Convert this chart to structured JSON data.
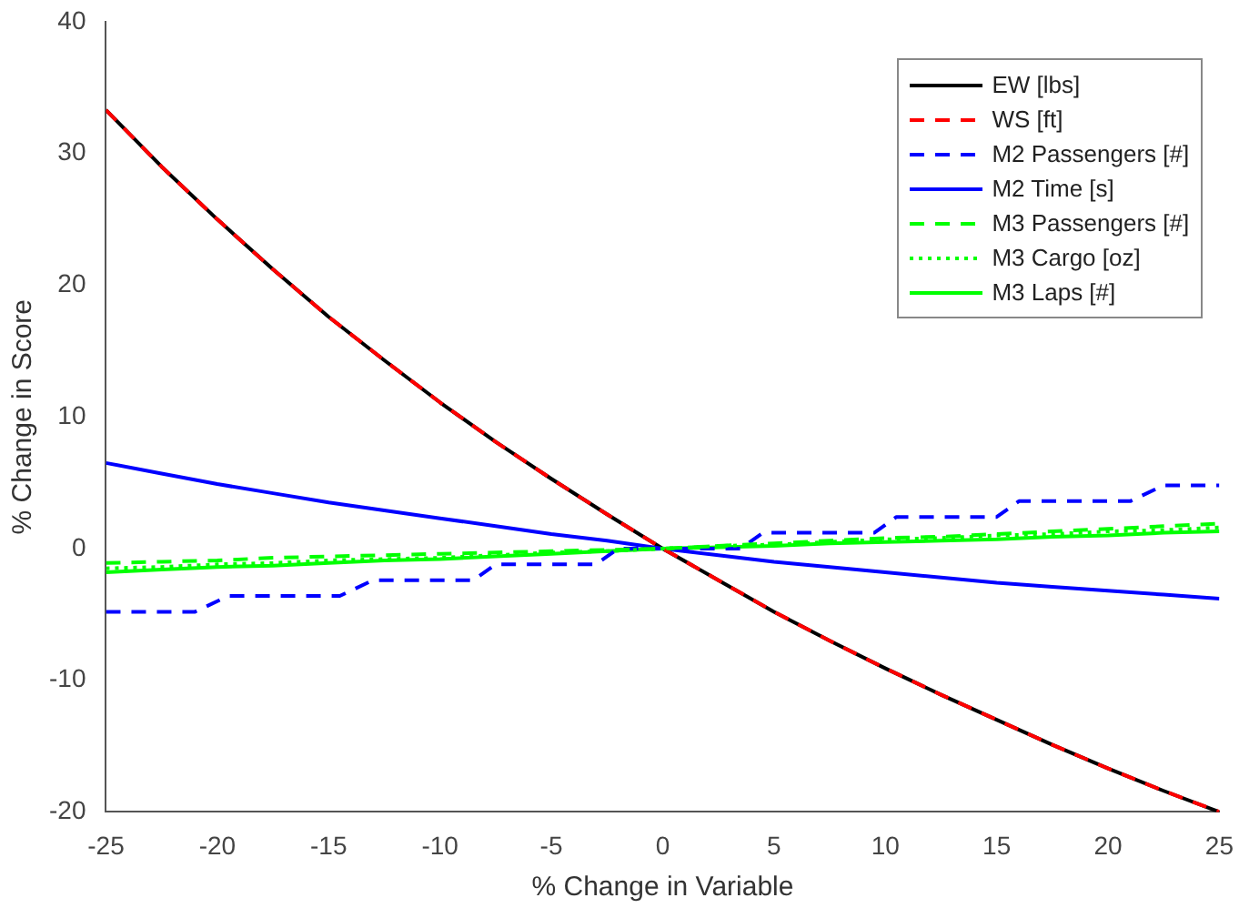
{
  "chart_data": {
    "type": "line",
    "xlabel": "% Change in Variable",
    "ylabel": "% Change in Score",
    "xlim": [
      -25,
      25
    ],
    "ylim": [
      -20,
      40
    ],
    "xticks": [
      -25,
      -20,
      -15,
      -10,
      -5,
      0,
      5,
      10,
      15,
      20,
      25
    ],
    "yticks": [
      -20,
      -10,
      0,
      10,
      20,
      30,
      40
    ],
    "grid": false,
    "legend": "top right",
    "marker": "none",
    "x": [
      -25,
      -22.5,
      -20,
      -17.5,
      -15,
      -12.5,
      -10,
      -7.5,
      -5,
      -2.5,
      0,
      2.5,
      5,
      7.5,
      10,
      12.5,
      15,
      17.5,
      20,
      22.5,
      25
    ],
    "series": [
      {
        "name": "EW [lbs]",
        "color": "#000000",
        "line_style": "solid",
        "values": [
          33.3,
          29,
          25,
          21.2,
          17.6,
          14.3,
          11.1,
          8.1,
          5.3,
          2.6,
          0,
          -2.4,
          -4.8,
          -7,
          -9.1,
          -11.1,
          -13,
          -14.9,
          -16.7,
          -18.4,
          -20
        ]
      },
      {
        "name": "WS [ft]",
        "color": "#ff0000",
        "line_style": "dashed",
        "values": [
          33.3,
          29,
          25,
          21.2,
          17.6,
          14.3,
          11.1,
          8.1,
          5.3,
          2.6,
          0,
          -2.4,
          -4.8,
          -7,
          -9.1,
          -11.1,
          -13,
          -14.9,
          -16.7,
          -18.4,
          -20
        ]
      },
      {
        "name": "M2 Passengers [#]",
        "color": "#0000ff",
        "line_style": "dashed",
        "x": [
          -25,
          -21,
          -19.5,
          -14.5,
          -13,
          -8.5,
          -7.5,
          -3,
          -2,
          3.5,
          4.5,
          9.5,
          10.5,
          15,
          16,
          21,
          22.5,
          25
        ],
        "values": [
          -4.8,
          -4.8,
          -3.6,
          -3.6,
          -2.4,
          -2.4,
          -1.2,
          -1.2,
          0,
          0,
          1.2,
          1.2,
          2.4,
          2.4,
          3.6,
          3.6,
          4.8,
          4.8
        ]
      },
      {
        "name": "M2 Time [s]",
        "color": "#0000ff",
        "line_style": "solid",
        "values": [
          6.5,
          5.7,
          4.9,
          4.2,
          3.5,
          2.9,
          2.3,
          1.7,
          1.1,
          0.6,
          0,
          -0.5,
          -1,
          -1.4,
          -1.8,
          -2.2,
          -2.6,
          -2.9,
          -3.2,
          -3.5,
          -3.8
        ]
      },
      {
        "name": "M3 Passengers [#]",
        "color": "#00ff00",
        "line_style": "dashed",
        "values": [
          -1.1,
          -1,
          -0.9,
          -0.7,
          -0.6,
          -0.5,
          -0.4,
          -0.3,
          -0.2,
          -0.1,
          0,
          0.2,
          0.4,
          0.6,
          0.8,
          0.9,
          1.1,
          1.3,
          1.5,
          1.7,
          1.9
        ]
      },
      {
        "name": "M3 Cargo [oz]",
        "color": "#00ff00",
        "line_style": "dotted",
        "values": [
          -1.5,
          -1.4,
          -1.2,
          -1.1,
          -0.9,
          -0.8,
          -0.7,
          -0.5,
          -0.3,
          -0.2,
          0,
          0.2,
          0.3,
          0.5,
          0.7,
          0.8,
          1,
          1.1,
          1.3,
          1.4,
          1.6
        ]
      },
      {
        "name": "M3 Laps [#]",
        "color": "#00ff00",
        "line_style": "solid",
        "values": [
          -1.8,
          -1.6,
          -1.4,
          -1.3,
          -1.1,
          -0.9,
          -0.8,
          -0.6,
          -0.4,
          -0.2,
          0,
          0.1,
          0.2,
          0.4,
          0.5,
          0.6,
          0.7,
          0.9,
          1,
          1.2,
          1.3
        ]
      }
    ]
  }
}
